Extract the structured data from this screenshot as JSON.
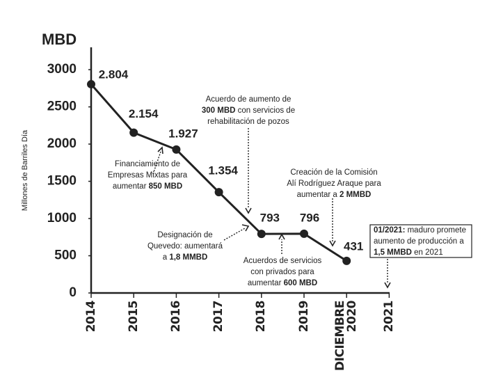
{
  "chart_data": {
    "type": "line",
    "title": "MBD",
    "y_label": "Millones de Barriles Día",
    "categories": [
      "2014",
      "2015",
      "2016",
      "2017",
      "2018",
      "2019",
      "DICIEMBRE 2020",
      "2021"
    ],
    "values": [
      2804,
      2154,
      1927,
      1354,
      793,
      796,
      431,
      null
    ],
    "value_labels": [
      "2.804",
      "2.154",
      "1.927",
      "1.354",
      "793",
      "796",
      "431",
      null
    ],
    "color": "#222222",
    "ylim": [
      0,
      3300
    ],
    "yticks": [
      0,
      500,
      1000,
      1500,
      2000,
      2500,
      3000
    ],
    "annotations": [
      {
        "lines": [
          [
            {
              "text": "Acuerdo de aumento de"
            }
          ],
          [
            {
              "text": "300 MBD",
              "bold": true
            },
            {
              "text": " con servicios de"
            }
          ],
          [
            {
              "text": "rehabilitación de pozos"
            }
          ]
        ]
      },
      {
        "lines": [
          [
            {
              "text": "Financiamiento de"
            }
          ],
          [
            {
              "text": "Empresas Mixtas para"
            }
          ],
          [
            {
              "text": "aumentar "
            },
            {
              "text": "850 MBD",
              "bold": true
            }
          ]
        ]
      },
      {
        "lines": [
          [
            {
              "text": "Designación de"
            }
          ],
          [
            {
              "text": "Quevedo: aumentará"
            }
          ],
          [
            {
              "text": "a "
            },
            {
              "text": "1,8 MMBD",
              "bold": true
            }
          ]
        ]
      },
      {
        "lines": [
          [
            {
              "text": "Acuerdos de servicios"
            }
          ],
          [
            {
              "text": "con privados para"
            }
          ],
          [
            {
              "text": "aumentar "
            },
            {
              "text": "600 MBD",
              "bold": true
            }
          ]
        ]
      },
      {
        "lines": [
          [
            {
              "text": "Creación de la Comisión"
            }
          ],
          [
            {
              "text": "Alí Rodríguez Araque para"
            }
          ],
          [
            {
              "text": "aumentar a "
            },
            {
              "text": "2 MMBD",
              "bold": true
            }
          ]
        ]
      },
      {
        "lines": [
          [
            {
              "text": "01/2021:",
              "bold": true
            },
            {
              "text": " maduro promete"
            }
          ],
          [
            {
              "text": "aumento de producción a"
            }
          ],
          [
            {
              "text": "1,5 MMBD",
              "bold": true
            },
            {
              "text": " en 2021"
            }
          ]
        ]
      }
    ]
  }
}
